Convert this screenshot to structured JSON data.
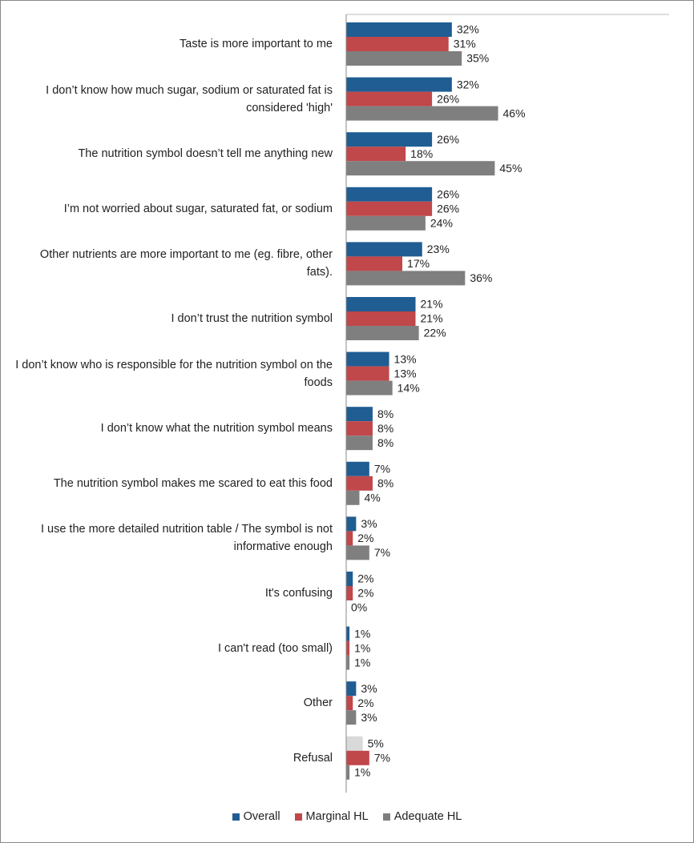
{
  "chart_data": {
    "type": "hbar",
    "categories": [
      "Taste is more important to me",
      "I don’t know how much sugar, sodium or saturated fat is considered 'high'",
      "The nutrition symbol doesn’t tell me anything new",
      "I’m not worried about sugar, saturated fat, or sodium",
      "Other nutrients are more important to me (eg. fibre, other fats).",
      "I don’t trust the nutrition symbol",
      "I don’t know who is responsible for the nutrition symbol on the foods",
      "I don’t know what the nutrition symbol means",
      "The nutrition symbol makes me scared to eat this food",
      "I use the more detailed nutrition table / The symbol is not informative enough",
      "It's confusing",
      "I can't read (too small)",
      "Other",
      "Refusal"
    ],
    "series": [
      {
        "name": "Overall",
        "color": "#1f5d93",
        "colors": [
          "#1f5d93",
          "#1f5d93",
          "#1f5d93",
          "#1f5d93",
          "#1f5d93",
          "#1f5d93",
          "#1f5d93",
          "#1f5d93",
          "#1f5d93",
          "#1f5d93",
          "#1f5d93",
          "#1f5d93",
          "#1f5d93",
          "#d9d9d9"
        ],
        "values": [
          32,
          32,
          26,
          26,
          23,
          21,
          13,
          8,
          7,
          3,
          2,
          1,
          3,
          5
        ],
        "value_labels": [
          "32%",
          "32%",
          "26%",
          "26%",
          "23%",
          "21%",
          "13%",
          "8%",
          "7%",
          "3%",
          "2%",
          "1%",
          "3%",
          "5%"
        ]
      },
      {
        "name": "Marginal HL",
        "color": "#c0474a",
        "values": [
          31,
          26,
          18,
          26,
          17,
          21,
          13,
          8,
          8,
          2,
          2,
          1,
          2,
          7
        ],
        "value_labels": [
          "31%",
          "26%",
          "18%",
          "26%",
          "17%",
          "21%",
          "13%",
          "8%",
          "8%",
          "2%",
          "2%",
          "1%",
          "2%",
          "7%"
        ]
      },
      {
        "name": "Adequate HL",
        "color": "#7f7f7f",
        "values": [
          35,
          46,
          45,
          24,
          36,
          22,
          14,
          8,
          4,
          7,
          0,
          1,
          3,
          1
        ],
        "value_labels": [
          "35%",
          "46%",
          "45%",
          "24%",
          "36%",
          "22%",
          "14%",
          "8%",
          "4%",
          "7%",
          "0%",
          "1%",
          "3%",
          "1%"
        ]
      }
    ],
    "xlim": [
      0,
      100
    ]
  }
}
